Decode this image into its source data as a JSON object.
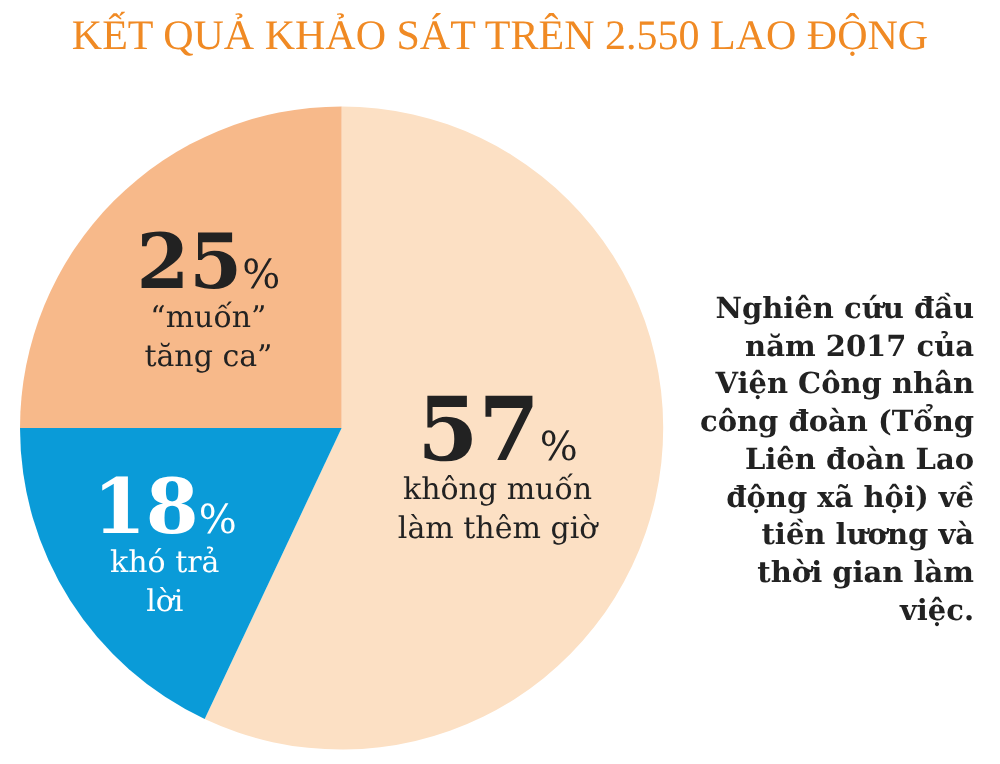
{
  "chart_data": {
    "type": "pie",
    "title": "KẾT QUẢ KHẢO SÁT TRÊN 2.550 LAO ĐỘNG",
    "categories": [
      "không muốn làm thêm giờ",
      "khó trả lời",
      "“muốn” tăng ca”"
    ],
    "values": [
      57,
      18,
      25
    ],
    "colors": [
      "#fce0c4",
      "#0a9bd8",
      "#f7b98a"
    ],
    "value_labels": [
      "57%",
      "18%",
      "25%"
    ],
    "annotations": [
      "Nghiên cứu đầu năm 2017 của Viện Công nhân công đoàn (Tổng Liên đoàn Lao động xã hội) về tiền lương và thời gian làm việc."
    ]
  }
}
